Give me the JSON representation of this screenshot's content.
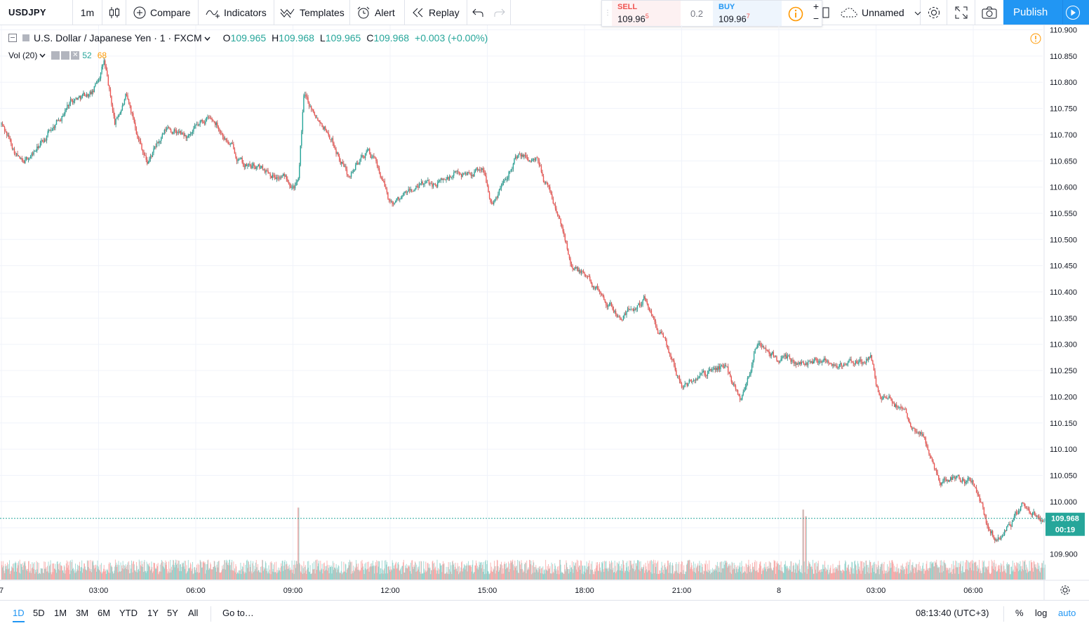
{
  "toolbar": {
    "symbol": "USDJPY",
    "interval": "1m",
    "compare_label": "Compare",
    "indicators_label": "Indicators",
    "templates_label": "Templates",
    "alert_label": "Alert",
    "replay_label": "Replay",
    "layout_name": "Unnamed",
    "publish_label": "Publish"
  },
  "trade_panel": {
    "sell_label": "SELL",
    "sell_price": "109.96",
    "sell_pip": "5",
    "spread": "0.2",
    "buy_label": "BUY",
    "buy_price": "109.96",
    "buy_pip": "7"
  },
  "legend": {
    "title": "U.S. Dollar / Japanese Yen · 1 · FXCM",
    "open_label": "O",
    "open": "109.965",
    "high_label": "H",
    "high": "109.968",
    "low_label": "L",
    "low": "109.965",
    "close_label": "C",
    "close": "109.968",
    "change": "+0.003 (+0.00%)",
    "vol_label": "Vol (20)",
    "vol_value_1": "52",
    "vol_value_2": "68"
  },
  "price_badge": {
    "price": "109.968",
    "countdown": "00:19"
  },
  "bottom": {
    "ranges": [
      "1D",
      "5D",
      "1M",
      "3M",
      "6M",
      "YTD",
      "1Y",
      "5Y",
      "All"
    ],
    "active_range": "1D",
    "goto_label": "Go to…",
    "clock": "08:13:40 (UTC+3)",
    "percent_label": "%",
    "log_label": "log",
    "auto_label": "auto"
  },
  "colors": {
    "up": "#26a69a",
    "down": "#ef5350",
    "accent": "#2196f3",
    "sell": "#ef5350",
    "buy": "#2196f3"
  },
  "chart_data": {
    "type": "candlestick",
    "ylim": [
      109.87,
      110.905
    ],
    "y_ticks": [
      "110.900",
      "110.850",
      "110.800",
      "110.750",
      "110.700",
      "110.650",
      "110.600",
      "110.550",
      "110.500",
      "110.450",
      "110.400",
      "110.350",
      "110.300",
      "110.250",
      "110.200",
      "110.150",
      "110.100",
      "110.050",
      "110.000",
      "109.950",
      "109.900"
    ],
    "x_ticks": [
      "7",
      "03:00",
      "06:00",
      "09:00",
      "12:00",
      "15:00",
      "18:00",
      "21:00",
      "8",
      "03:00",
      "06:00"
    ],
    "last_price": 109.968,
    "close_path": {
      "x": [
        "7 00:00",
        "7 00:40",
        "7 01:20",
        "7 02:10",
        "7 02:50",
        "7 03:10",
        "7 03:30",
        "7 03:50",
        "7 04:30",
        "7 05:10",
        "7 05:50",
        "7 06:20",
        "7 06:40",
        "7 07:30",
        "7 08:20",
        "7 09:10",
        "7 09:20",
        "7 10:00",
        "7 10:40",
        "7 11:20",
        "7 11:40",
        "7 12:00",
        "7 13:00",
        "7 14:00",
        "7 14:50",
        "7 15:10",
        "7 15:50",
        "7 16:30",
        "7 17:00",
        "7 17:40",
        "7 18:30",
        "7 19:10",
        "7 19:50",
        "7 20:20",
        "7 21:00",
        "7 21:40",
        "7 22:20",
        "7 22:50",
        "7 23:20",
        "8 00:00",
        "8 00:40",
        "8 01:20",
        "8 02:00",
        "8 02:50",
        "8 03:10",
        "8 03:50",
        "8 04:30",
        "8 05:00",
        "8 05:30",
        "8 06:00",
        "8 06:30",
        "8 06:50",
        "8 07:30",
        "8 08:13"
      ],
      "y": [
        110.72,
        110.64,
        110.69,
        110.77,
        110.78,
        110.84,
        110.72,
        110.77,
        110.65,
        110.71,
        110.69,
        110.73,
        110.72,
        110.64,
        110.63,
        110.61,
        110.77,
        110.72,
        110.63,
        110.67,
        110.63,
        110.57,
        110.6,
        110.62,
        110.64,
        110.57,
        110.66,
        110.65,
        110.58,
        110.45,
        110.4,
        110.35,
        110.39,
        110.33,
        110.22,
        110.24,
        110.26,
        110.2,
        110.3,
        110.27,
        110.26,
        110.28,
        110.26,
        110.27,
        110.19,
        110.18,
        110.12,
        110.04,
        110.05,
        110.04,
        109.94,
        109.93,
        109.99,
        109.968
      ]
    },
    "volume": {
      "x": [
        "7 09:10",
        "8 00:45",
        "8 00:50"
      ],
      "values": [
        68,
        65,
        55
      ],
      "note_values": []
    }
  }
}
